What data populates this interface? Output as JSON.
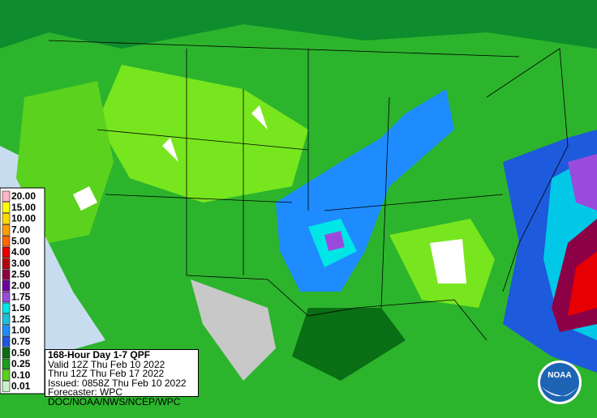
{
  "map": {
    "legend": {
      "items": [
        {
          "label": "20.00",
          "color": "#ffb4c8"
        },
        {
          "label": "15.00",
          "color": "#ffff00"
        },
        {
          "label": "10.00",
          "color": "#ffd700"
        },
        {
          "label": "7.00",
          "color": "#ff9f00"
        },
        {
          "label": "5.00",
          "color": "#ff6a00"
        },
        {
          "label": "4.00",
          "color": "#e60000"
        },
        {
          "label": "3.00",
          "color": "#b4000a"
        },
        {
          "label": "2.50",
          "color": "#8c0046"
        },
        {
          "label": "2.00",
          "color": "#6e00a0"
        },
        {
          "label": "1.75",
          "color": "#9b4bdc"
        },
        {
          "label": "1.50",
          "color": "#00e6e6"
        },
        {
          "label": "1.25",
          "color": "#1ebed7"
        },
        {
          "label": "1.00",
          "color": "#1e8cff"
        },
        {
          "label": "0.75",
          "color": "#1e5adc"
        },
        {
          "label": "0.50",
          "color": "#0a6e14"
        },
        {
          "label": "0.25",
          "color": "#1e9b1e"
        },
        {
          "label": "0.10",
          "color": "#5ad21e"
        },
        {
          "label": "0.01",
          "color": "#c8f0c8"
        }
      ]
    },
    "info": {
      "title": "168-Hour Day 1-7 QPF",
      "lines": [
        "Valid 12Z Thu Feb 10 2022",
        "Thru 12Z Thu Feb 17 2022",
        "Issued: 0858Z Thu Feb 10 2022",
        "Forecaster: WPC",
        "DOC/NOAA/NWS/NCEP/WPC"
      ]
    },
    "logo": "NOAA"
  }
}
